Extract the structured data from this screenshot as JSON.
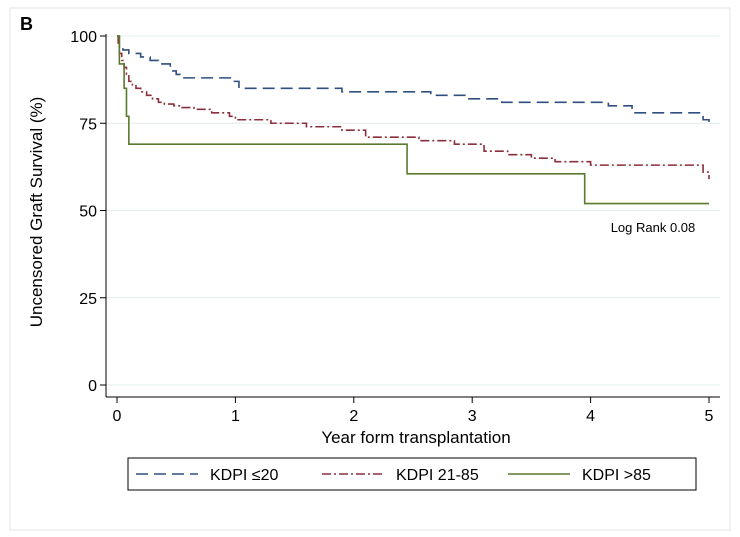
{
  "panel_label": "B",
  "chart_data": {
    "type": "line",
    "step": true,
    "title": "",
    "xlabel": "Year form transplantation",
    "ylabel": "Uncensored Graft Survival (%)",
    "xlim": [
      0,
      5
    ],
    "ylim": [
      0,
      100
    ],
    "xticks": [
      0,
      1,
      2,
      3,
      4,
      5
    ],
    "yticks": [
      0,
      25,
      50,
      75,
      100
    ],
    "grid": "horizontal",
    "legend_placement": "bottom",
    "annotation": "Log Rank 0.08",
    "series": [
      {
        "name": "KDPI ≤20",
        "color": "#2e4f7f",
        "dash": "long-dash",
        "x": [
          0,
          0.02,
          0.05,
          0.1,
          0.2,
          0.28,
          0.35,
          0.45,
          0.5,
          0.55,
          0.98,
          1.03,
          1.9,
          2.5,
          2.65,
          2.95,
          3.25,
          4.15,
          4.35,
          4.95,
          5.0
        ],
        "y": [
          100,
          97,
          96,
          95,
          94,
          93,
          92,
          90,
          89,
          88,
          87,
          85,
          84,
          84,
          83,
          82,
          81,
          80,
          78,
          76,
          75
        ]
      },
      {
        "name": "KDPI 21-85",
        "color": "#8b2f3c",
        "dash": "dash-dot",
        "x": [
          0,
          0.01,
          0.02,
          0.04,
          0.06,
          0.08,
          0.1,
          0.13,
          0.16,
          0.2,
          0.25,
          0.3,
          0.35,
          0.4,
          0.48,
          0.55,
          0.65,
          0.8,
          0.95,
          1.0,
          1.3,
          1.6,
          1.9,
          2.1,
          2.55,
          2.85,
          3.1,
          3.3,
          3.5,
          3.7,
          4.0,
          4.95,
          5.0
        ],
        "y": [
          100,
          97,
          95,
          93,
          91,
          89,
          87,
          86,
          85,
          84,
          83,
          82,
          81,
          80.5,
          80,
          79.5,
          79,
          78,
          77,
          76,
          75,
          74,
          73,
          71,
          70,
          69,
          67,
          66,
          65,
          64,
          63,
          61,
          59
        ]
      },
      {
        "name": "KDPI >85",
        "color": "#5a7a2e",
        "dash": "solid",
        "x": [
          0,
          0.02,
          0.06,
          0.08,
          0.1,
          2.45,
          3.95,
          5.0
        ],
        "y": [
          100,
          92,
          85,
          77,
          69,
          60.5,
          52,
          52
        ]
      }
    ]
  }
}
